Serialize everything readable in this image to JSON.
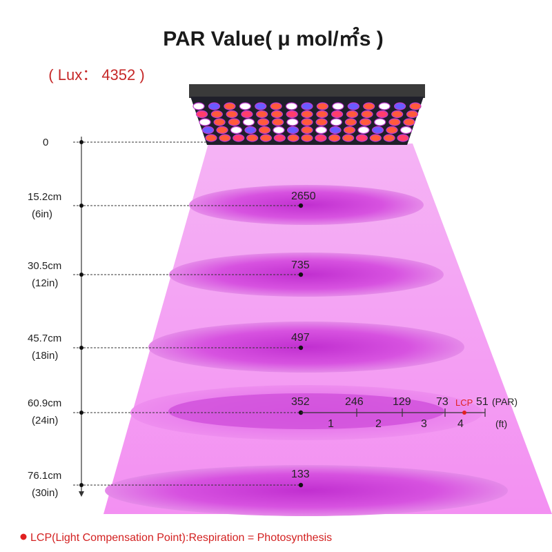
{
  "title": "PAR Value( μ mol/㎡s )",
  "lux_label": "( Lux： 4352 )",
  "distances": [
    {
      "cm": "0",
      "in": "",
      "par": ""
    },
    {
      "cm": "15.2cm",
      "in": "(6in)",
      "par": "2650"
    },
    {
      "cm": "30.5cm",
      "in": "(12in)",
      "par": "735"
    },
    {
      "cm": "45.7cm",
      "in": "(18in)",
      "par": "497"
    },
    {
      "cm": "60.9cm",
      "in": "(24in)",
      "par": "352"
    },
    {
      "cm": "76.1cm",
      "in": "(30in)",
      "par": "133"
    }
  ],
  "spread": {
    "par_values": [
      "246",
      "129",
      "73",
      "51"
    ],
    "par_unit": "(PAR)",
    "ft_values": [
      "1",
      "2",
      "3",
      "4"
    ],
    "ft_unit": "(ft)",
    "lcp_label": "LCP"
  },
  "footnote": "LCP(Light Compensation Point):Respiration = Photosynthesis",
  "colors": {
    "beam": "#f6a6f4",
    "ellipse": "#d94ee2",
    "lcp": "#e02020",
    "text": "#222222",
    "panel": "#2b2b2b"
  }
}
